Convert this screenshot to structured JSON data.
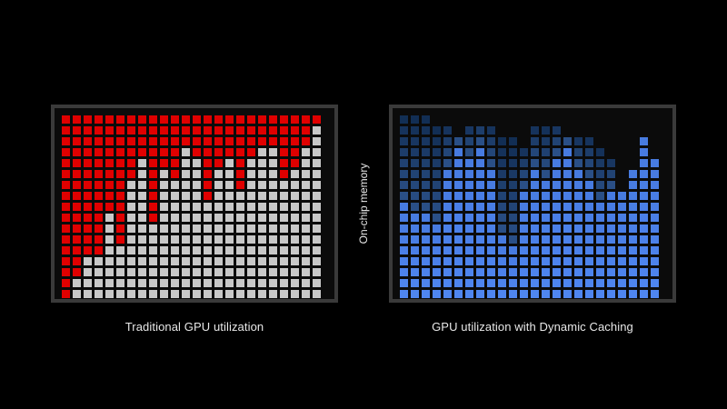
{
  "captions": {
    "traditional": "Traditional GPU utilization",
    "dynamic": "GPU utilization with Dynamic Caching"
  },
  "axis_label": "On-chip memory",
  "colors": {
    "background": "#000000",
    "panel_border": "#3a3a3a",
    "allocated_cell": "#e00000",
    "unused_cell": "#c8c8c8",
    "dynamic_cell_bright": "#4f86f0",
    "dynamic_cell_dim": "#0f2a4e"
  },
  "chart_data": [
    {
      "type": "heatmap",
      "name": "traditional",
      "columns": 24,
      "rows": 17,
      "red_depth_per_column": [
        17,
        15,
        13,
        13,
        9,
        12,
        6,
        4,
        10,
        5,
        6,
        3,
        4,
        8,
        5,
        4,
        7,
        4,
        3,
        3,
        6,
        5,
        3,
        1
      ]
    },
    {
      "type": "heatmap",
      "name": "dynamic_caching",
      "columns": 24,
      "rows": 17,
      "filled_height_per_column": [
        17,
        17,
        17,
        16,
        16,
        15,
        16,
        16,
        16,
        15,
        15,
        14,
        16,
        16,
        16,
        15,
        15,
        15,
        14,
        13,
        10,
        12,
        15,
        13
      ],
      "bright_height_per_column": [
        9,
        8,
        8,
        7,
        12,
        14,
        13,
        14,
        12,
        6,
        5,
        10,
        12,
        11,
        13,
        14,
        12,
        11,
        9,
        10,
        10,
        12,
        15,
        13
      ]
    }
  ]
}
